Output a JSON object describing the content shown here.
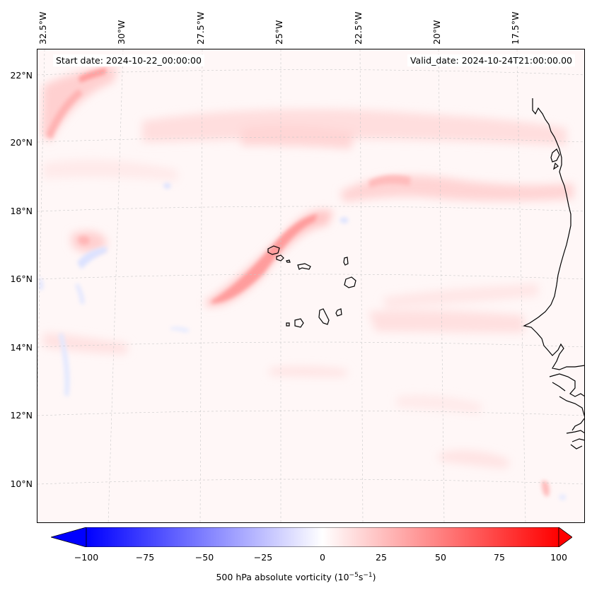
{
  "map": {
    "start_date": "Start date: 2024-10-22_00:00:00",
    "valid_date": "Valid_date: 2024-10-24T21:00:00.00",
    "lon_labels": [
      "32.5°W",
      "30°W",
      "27.5°W",
      "25°W",
      "22.5°W",
      "20°W",
      "17.5°W"
    ],
    "lat_labels": [
      "22°N",
      "20°N",
      "18°N",
      "16°N",
      "14°N",
      "12°N",
      "10°N"
    ],
    "islands": "Cape Verde islands",
    "coastline": "West African coast (Mauritania, Senegal, Gambia, Guinea-Bissau)"
  },
  "colorbar": {
    "label_prefix": "500 hPa absolute vorticity (10",
    "label_exp1": "−5",
    "label_mid": "s",
    "label_exp2": "−1",
    "label_suffix": ")",
    "ticks": [
      "−100",
      "−75",
      "−50",
      "−25",
      "0",
      "25",
      "50",
      "75",
      "100"
    ],
    "min": -100,
    "max": 100,
    "extend": "both",
    "colormap": "bwr",
    "neg_color": "#0000ff",
    "pos_color": "#ff0000"
  }
}
